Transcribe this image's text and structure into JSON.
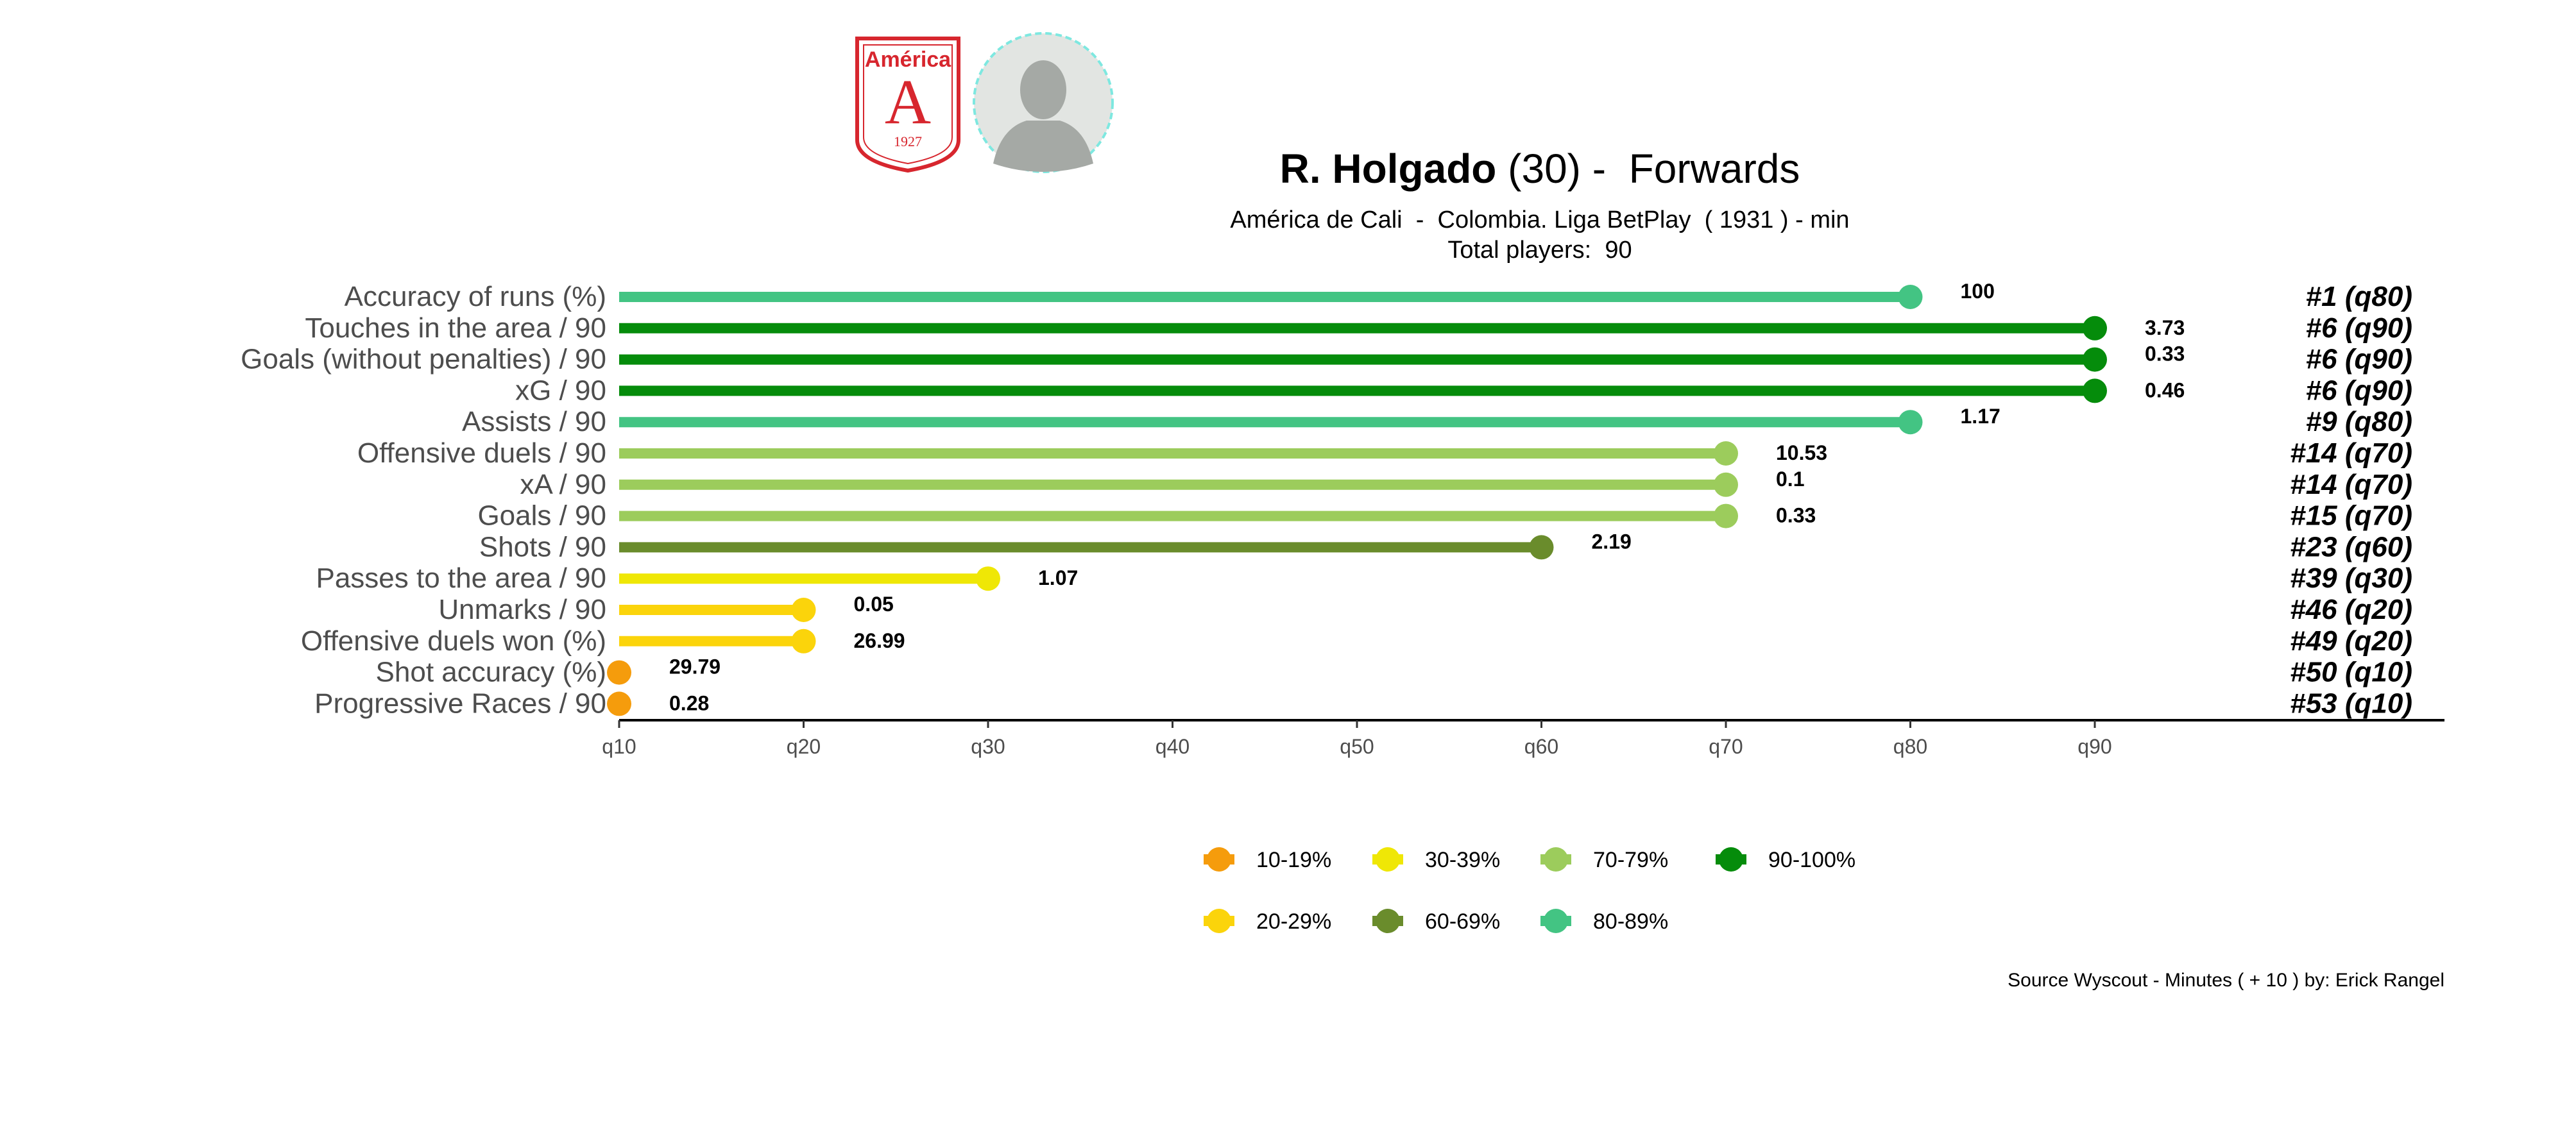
{
  "header": {
    "player_name": "R. Holgado",
    "player_age": "(30)",
    "position_sep": " -  ",
    "position": "Forwards",
    "team_line": "América de Cali  -  Colombia. Liga BetPlay  ( 1931 ) - min",
    "total_line": "Total players:  90",
    "crest": {
      "name": "América",
      "letter": "A",
      "year": "1927",
      "color": "#d7262e"
    }
  },
  "footer": {
    "source": "Source Wyscout - Minutes ( + 10 ) by: Erick Rangel"
  },
  "colors": {
    "10-19%": "#f59c0c",
    "20-29%": "#fbd40b",
    "30-39%": "#efe706",
    "60-69%": "#6a8c2c",
    "70-79%": "#9ccc5c",
    "80-89%": "#43c483",
    "90-100%": "#058c0b"
  },
  "chart_data": {
    "type": "lollipop",
    "x_ticks": [
      "q10",
      "q20",
      "q30",
      "q40",
      "q50",
      "q60",
      "q70",
      "q80",
      "q90"
    ],
    "xlim": [
      10,
      90
    ],
    "grid": false,
    "legend_position": "bottom",
    "legend": [
      {
        "label": "10-19%",
        "color_key": "10-19%"
      },
      {
        "label": "30-39%",
        "color_key": "30-39%"
      },
      {
        "label": "70-79%",
        "color_key": "70-79%"
      },
      {
        "label": "90-100%",
        "color_key": "90-100%"
      },
      {
        "label": "20-29%",
        "color_key": "20-29%"
      },
      {
        "label": "60-69%",
        "color_key": "60-69%"
      },
      {
        "label": "80-89%",
        "color_key": "80-89%"
      }
    ],
    "rows": [
      {
        "metric": "Accuracy of runs (%)",
        "percentile": 80,
        "value": "100",
        "rank": "#1 (q80)",
        "bucket": "80-89%"
      },
      {
        "metric": "Touches in the area / 90",
        "percentile": 90,
        "value": "3.73",
        "rank": "#6 (q90)",
        "bucket": "90-100%"
      },
      {
        "metric": "Goals (without penalties) / 90",
        "percentile": 90,
        "value": "0.33",
        "rank": "#6 (q90)",
        "bucket": "90-100%"
      },
      {
        "metric": "xG / 90",
        "percentile": 90,
        "value": "0.46",
        "rank": "#6 (q90)",
        "bucket": "90-100%"
      },
      {
        "metric": "Assists / 90",
        "percentile": 80,
        "value": "1.17",
        "rank": "#9 (q80)",
        "bucket": "80-89%"
      },
      {
        "metric": "Offensive duels / 90",
        "percentile": 70,
        "value": "10.53",
        "rank": "#14 (q70)",
        "bucket": "70-79%"
      },
      {
        "metric": "xA / 90",
        "percentile": 70,
        "value": "0.1",
        "rank": "#14 (q70)",
        "bucket": "70-79%"
      },
      {
        "metric": "Goals / 90",
        "percentile": 70,
        "value": "0.33",
        "rank": "#15 (q70)",
        "bucket": "70-79%"
      },
      {
        "metric": "Shots / 90",
        "percentile": 60,
        "value": "2.19",
        "rank": "#23 (q60)",
        "bucket": "60-69%"
      },
      {
        "metric": "Passes to the area / 90",
        "percentile": 30,
        "value": "1.07",
        "rank": "#39 (q30)",
        "bucket": "30-39%"
      },
      {
        "metric": "Unmarks / 90",
        "percentile": 20,
        "value": "0.05",
        "rank": "#46 (q20)",
        "bucket": "20-29%"
      },
      {
        "metric": "Offensive duels won (%)",
        "percentile": 20,
        "value": "26.99",
        "rank": "#49 (q20)",
        "bucket": "20-29%"
      },
      {
        "metric": "Shot accuracy (%)",
        "percentile": 10,
        "value": "29.79",
        "rank": "#50 (q10)",
        "bucket": "10-19%"
      },
      {
        "metric": "Progressive Races / 90",
        "percentile": 10,
        "value": "0.28",
        "rank": "#53 (q10)",
        "bucket": "10-19%"
      }
    ]
  }
}
